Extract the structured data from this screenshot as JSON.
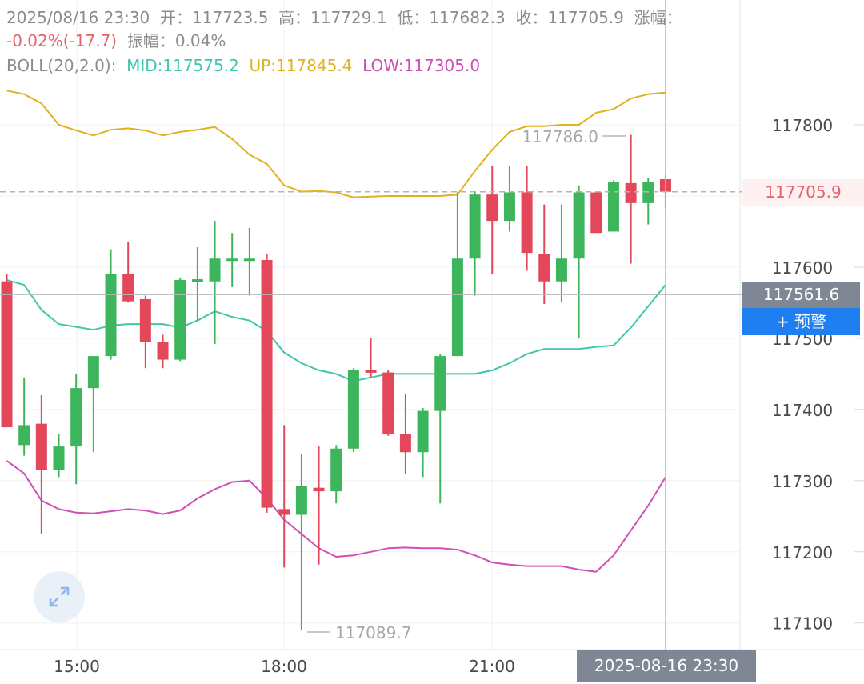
{
  "header": {
    "datetime": "2025/08/16 23:30",
    "open_label": "开：",
    "open": "117723.5",
    "high_label": "高：",
    "high": "117729.1",
    "low_label": "低：",
    "low": "117682.3",
    "close_label": "收：",
    "close": "117705.9",
    "change_label": "涨幅：",
    "change": "-0.02%(-17.7)",
    "amplitude_label": "振幅：",
    "amplitude": "0.04%"
  },
  "boll": {
    "label": "BOLL(20,2.0):",
    "mid_label": "MID:",
    "mid": "117575.2",
    "up_label": "UP:",
    "up": "117845.4",
    "low_label": "LOW:",
    "low": "117305.0"
  },
  "price_axis": {
    "ticks": [
      "117800",
      "117600",
      "117500",
      "117400",
      "117300",
      "117200",
      "117100"
    ]
  },
  "time_axis": {
    "ticks": [
      "15:00",
      "18:00",
      "21:00"
    ]
  },
  "markers": {
    "high": "117786.0",
    "low": "117089.7"
  },
  "overlays": {
    "last_price": "117705.9",
    "crosshair_price": "117561.6",
    "crosshair_time": "2025-08-16 23:30",
    "alert_button": "+ 预警"
  },
  "colors": {
    "up_candle": "#3cb55d",
    "down_candle": "#e2475a",
    "boll_mid": "#3fc7ad",
    "boll_up": "#e0b21c",
    "boll_low": "#cf4fb4",
    "alert": "#1f7ff0"
  },
  "icons": {
    "expand": "expand-arrows-icon"
  },
  "chart_data": {
    "type": "candlestick",
    "x_ticks": [
      "15:00",
      "18:00",
      "21:00"
    ],
    "ylim": [
      117070,
      117890
    ],
    "candles": [
      {
        "o": 117580,
        "h": 117590,
        "l": 117375,
        "c": 117375
      },
      {
        "o": 117350,
        "h": 117445,
        "l": 117335,
        "c": 117378
      },
      {
        "o": 117380,
        "h": 117420,
        "l": 117225,
        "c": 117315
      },
      {
        "o": 117315,
        "h": 117365,
        "l": 117305,
        "c": 117348
      },
      {
        "o": 117348,
        "h": 117450,
        "l": 117295,
        "c": 117430
      },
      {
        "o": 117430,
        "h": 117475,
        "l": 117340,
        "c": 117475
      },
      {
        "o": 117475,
        "h": 117625,
        "l": 117470,
        "c": 117590
      },
      {
        "o": 117590,
        "h": 117635,
        "l": 117550,
        "c": 117552
      },
      {
        "o": 117555,
        "h": 117560,
        "l": 117458,
        "c": 117495
      },
      {
        "o": 117495,
        "h": 117505,
        "l": 117458,
        "c": 117470
      },
      {
        "o": 117470,
        "h": 117585,
        "l": 117468,
        "c": 117582
      },
      {
        "o": 117582,
        "h": 117628,
        "l": 117525,
        "c": 117583
      },
      {
        "o": 117580,
        "h": 117665,
        "l": 117492,
        "c": 117612
      },
      {
        "o": 117610,
        "h": 117648,
        "l": 117572,
        "c": 117612
      },
      {
        "o": 117612,
        "h": 117655,
        "l": 117560,
        "c": 117612
      },
      {
        "o": 117610,
        "h": 117618,
        "l": 117255,
        "c": 117262
      },
      {
        "o": 117260,
        "h": 117378,
        "l": 117178,
        "c": 117252
      },
      {
        "o": 117252,
        "h": 117338,
        "l": 117090,
        "c": 117292
      },
      {
        "o": 117290,
        "h": 117348,
        "l": 117182,
        "c": 117285
      },
      {
        "o": 117285,
        "h": 117350,
        "l": 117268,
        "c": 117345
      },
      {
        "o": 117345,
        "h": 117458,
        "l": 117340,
        "c": 117455
      },
      {
        "o": 117455,
        "h": 117500,
        "l": 117445,
        "c": 117452
      },
      {
        "o": 117452,
        "h": 117455,
        "l": 117363,
        "c": 117365
      },
      {
        "o": 117365,
        "h": 117422,
        "l": 117310,
        "c": 117340
      },
      {
        "o": 117340,
        "h": 117402,
        "l": 117305,
        "c": 117398
      },
      {
        "o": 117398,
        "h": 117478,
        "l": 117268,
        "c": 117475
      },
      {
        "o": 117475,
        "h": 117705,
        "l": 117475,
        "c": 117612
      },
      {
        "o": 117612,
        "h": 117705,
        "l": 117560,
        "c": 117702
      },
      {
        "o": 117702,
        "h": 117742,
        "l": 117590,
        "c": 117665
      },
      {
        "o": 117665,
        "h": 117742,
        "l": 117650,
        "c": 117705
      },
      {
        "o": 117705,
        "h": 117742,
        "l": 117595,
        "c": 117620
      },
      {
        "o": 117618,
        "h": 117688,
        "l": 117548,
        "c": 117580
      },
      {
        "o": 117580,
        "h": 117688,
        "l": 117550,
        "c": 117612
      },
      {
        "o": 117612,
        "h": 117715,
        "l": 117500,
        "c": 117705
      },
      {
        "o": 117705,
        "h": 117705,
        "l": 117648,
        "c": 117648
      },
      {
        "o": 117650,
        "h": 117722,
        "l": 117650,
        "c": 117720
      },
      {
        "o": 117718,
        "h": 117786,
        "l": 117605,
        "c": 117690
      },
      {
        "o": 117690,
        "h": 117725,
        "l": 117660,
        "c": 117720
      },
      {
        "o": 117723.5,
        "h": 117729.1,
        "l": 117682.3,
        "c": 117705.9
      }
    ],
    "boll_x": [
      0,
      1,
      2,
      3,
      4,
      5,
      6,
      7,
      8,
      9,
      10,
      11,
      12,
      13,
      14,
      15,
      16,
      17,
      18,
      19,
      20,
      21,
      22,
      23,
      24,
      25,
      26,
      27,
      28,
      29,
      30,
      31,
      32,
      33,
      34,
      35,
      36,
      37,
      38
    ],
    "series": [
      {
        "name": "UP",
        "values": [
          117848,
          117843,
          117830,
          117800,
          117792,
          117785,
          117793,
          117795,
          117792,
          117785,
          117790,
          117793,
          117797,
          117780,
          117758,
          117745,
          117715,
          117706,
          117707,
          117705,
          117698,
          117699,
          117700,
          117700,
          117700,
          117700,
          117702,
          117735,
          117765,
          117790,
          117798,
          117798,
          117800,
          117800,
          117817,
          117822,
          117837,
          117843,
          117845.4
        ]
      },
      {
        "name": "MID",
        "values": [
          117582,
          117575,
          117540,
          117520,
          117516,
          117512,
          117518,
          117520,
          117520,
          117520,
          117515,
          117525,
          117538,
          117530,
          117525,
          117510,
          117480,
          117465,
          117455,
          117450,
          117440,
          117445,
          117450,
          117450,
          117450,
          117450,
          117450,
          117450,
          117455,
          117465,
          117478,
          117485,
          117485,
          117485,
          117488,
          117490,
          117515,
          117545,
          117575.2
        ]
      },
      {
        "name": "LOW",
        "values": [
          117328,
          117310,
          117272,
          117260,
          117255,
          117254,
          117257,
          117260,
          117258,
          117253,
          117258,
          117275,
          117288,
          117298,
          117300,
          117275,
          117245,
          117225,
          117205,
          117193,
          117195,
          117200,
          117205,
          117206,
          117205,
          117205,
          117203,
          117195,
          117185,
          117182,
          117180,
          117180,
          117180,
          117175,
          117172,
          117195,
          117230,
          117265,
          117305.0
        ]
      }
    ]
  }
}
